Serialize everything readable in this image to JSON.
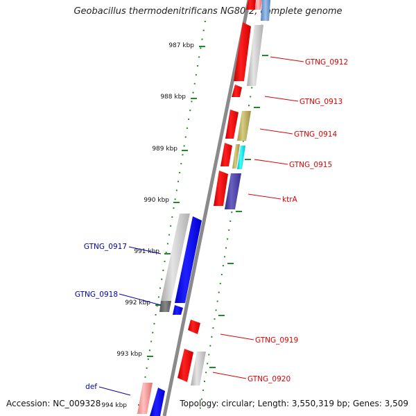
{
  "title": "Geobacillus thermodenitrificans NG80-2, complete genome",
  "footer": {
    "accession": "Accession: NC_009328",
    "topology": "Topology: circular; Length: 3,550,319 bp; Genes: 3,509"
  },
  "ticks": [
    {
      "label": "987 kbp"
    },
    {
      "label": "988 kbp"
    },
    {
      "label": "989 kbp"
    },
    {
      "label": "990 kbp"
    },
    {
      "label": "991 kbp"
    },
    {
      "label": "992 kbp"
    },
    {
      "label": "993 kbp"
    },
    {
      "label": "994 kbp"
    }
  ],
  "gene_labels": [
    {
      "text": "GTNG_0912",
      "color": "#dd0000"
    },
    {
      "text": "GTNG_0913",
      "color": "#dd0000"
    },
    {
      "text": "GTNG_0914",
      "color": "#dd0000"
    },
    {
      "text": "GTNG_0915",
      "color": "#dd0000"
    },
    {
      "text": "ktrA",
      "color": "#dd0000"
    },
    {
      "text": "GTNG_0917",
      "color": "#0000aa"
    },
    {
      "text": "GTNG_0918",
      "color": "#0000aa"
    },
    {
      "text": "GTNG_0919",
      "color": "#dd0000"
    },
    {
      "text": "GTNG_0920",
      "color": "#dd0000"
    },
    {
      "text": "def",
      "color": "#0000aa"
    }
  ],
  "colors": {
    "forward_strand": "#ee0000",
    "reverse_strand": "#0000ee",
    "backbone": "#888888",
    "tick": "#228822"
  }
}
